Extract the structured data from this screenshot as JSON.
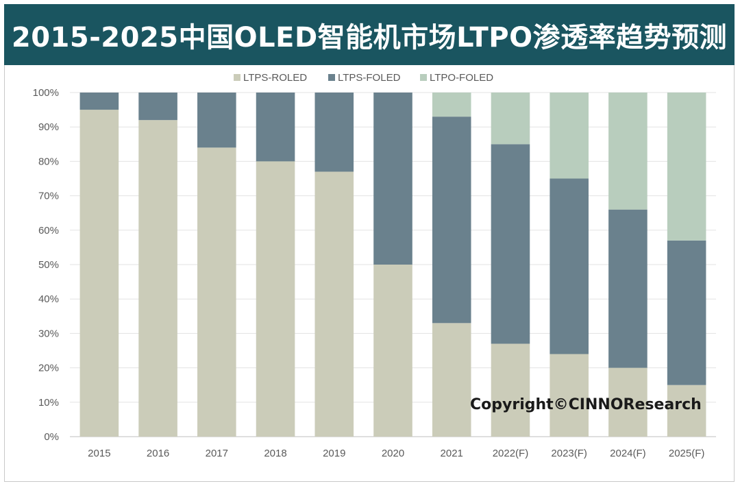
{
  "chart_data": {
    "type": "bar",
    "stacked": true,
    "title": "2015-2025中国OLED智能机市场LTPO渗透率趋势预测",
    "categories": [
      "2015",
      "2016",
      "2017",
      "2018",
      "2019",
      "2020",
      "2021",
      "2022(F)",
      "2023(F)",
      "2024(F)",
      "2025(F)"
    ],
    "series": [
      {
        "name": "LTPS-ROLED",
        "color": "#cbccb9",
        "values": [
          95,
          92,
          84,
          80,
          77,
          50,
          33,
          27,
          24,
          20,
          15
        ]
      },
      {
        "name": "LTPS-FOLED",
        "color": "#6a818d",
        "values": [
          5,
          8,
          16,
          20,
          23,
          50,
          60,
          58,
          51,
          46,
          42
        ]
      },
      {
        "name": "LTPO-FOLED",
        "color": "#b8cdbd",
        "values": [
          0,
          0,
          0,
          0,
          0,
          0,
          7,
          15,
          25,
          34,
          43
        ]
      }
    ],
    "yticks": [
      "0%",
      "10%",
      "20%",
      "30%",
      "40%",
      "50%",
      "60%",
      "70%",
      "80%",
      "90%",
      "100%"
    ],
    "ylim": [
      0,
      100
    ],
    "legend_position": "top",
    "grid": true,
    "title_bar_color": "#1a5560",
    "annotation": "Copyright©CINNOResearch"
  }
}
